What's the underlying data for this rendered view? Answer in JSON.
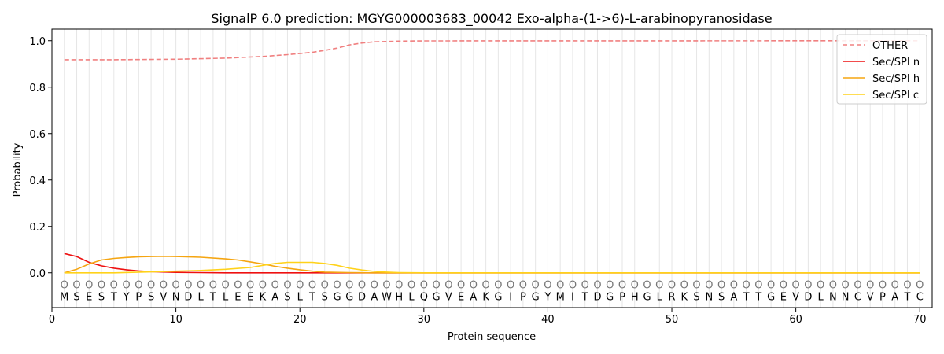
{
  "chart_data": {
    "type": "line",
    "title": "SignalP 6.0 prediction: MGYG000003683_00042 Exo-alpha-(1->6)-L-arabinopyranosidase",
    "xlabel": "Protein sequence",
    "ylabel": "Probability",
    "xlim": [
      0,
      71
    ],
    "ylim": [
      -0.15,
      1.05
    ],
    "x_ticks": [
      "0",
      "10",
      "20",
      "30",
      "40",
      "50",
      "60",
      "70"
    ],
    "y_ticks": [
      "0.0",
      "0.2",
      "0.4",
      "0.6",
      "0.8",
      "1.0"
    ],
    "legend_position": "top-right",
    "sequence": [
      "M",
      "S",
      "E",
      "S",
      "T",
      "Y",
      "P",
      "S",
      "V",
      "N",
      "D",
      "L",
      "T",
      "L",
      "E",
      "E",
      "K",
      "A",
      "S",
      "L",
      "T",
      "S",
      "G",
      "G",
      "D",
      "A",
      "W",
      "H",
      "L",
      "Q",
      "G",
      "V",
      "E",
      "A",
      "K",
      "G",
      "I",
      "P",
      "G",
      "Y",
      "M",
      "I",
      "T",
      "D",
      "G",
      "P",
      "H",
      "G",
      "L",
      "R",
      "K",
      "S",
      "N",
      "S",
      "A",
      "T",
      "T",
      "G",
      "E",
      "V",
      "D",
      "L",
      "N",
      "N",
      "C",
      "V",
      "P",
      "A",
      "T",
      "C"
    ],
    "predicted_label": "O",
    "series": [
      {
        "name": "OTHER",
        "color": "#f08080",
        "dash": "dashed",
        "points": [
          [
            1,
            0.918
          ],
          [
            5,
            0.918
          ],
          [
            10,
            0.92
          ],
          [
            14,
            0.925
          ],
          [
            17,
            0.932
          ],
          [
            19,
            0.94
          ],
          [
            21,
            0.95
          ],
          [
            22,
            0.958
          ],
          [
            23,
            0.968
          ],
          [
            24,
            0.982
          ],
          [
            25,
            0.99
          ],
          [
            26,
            0.995
          ],
          [
            28,
            0.998
          ],
          [
            30,
            0.999
          ],
          [
            70,
            1.0
          ]
        ]
      },
      {
        "name": "Sec/SPI n",
        "color": "#ee1111",
        "dash": "solid",
        "points": [
          [
            1,
            0.083
          ],
          [
            2,
            0.07
          ],
          [
            3,
            0.045
          ],
          [
            4,
            0.03
          ],
          [
            5,
            0.02
          ],
          [
            6,
            0.013
          ],
          [
            7,
            0.008
          ],
          [
            8,
            0.005
          ],
          [
            10,
            0.002
          ],
          [
            14,
            0.0
          ],
          [
            70,
            0.0
          ]
        ]
      },
      {
        "name": "Sec/SPI h",
        "color": "#f5a511",
        "dash": "solid",
        "points": [
          [
            1,
            0.0
          ],
          [
            2,
            0.015
          ],
          [
            3,
            0.038
          ],
          [
            4,
            0.055
          ],
          [
            5,
            0.062
          ],
          [
            6,
            0.066
          ],
          [
            7,
            0.069
          ],
          [
            8,
            0.07
          ],
          [
            9,
            0.071
          ],
          [
            10,
            0.07
          ],
          [
            12,
            0.067
          ],
          [
            14,
            0.06
          ],
          [
            15,
            0.055
          ],
          [
            16,
            0.047
          ],
          [
            17,
            0.038
          ],
          [
            18,
            0.028
          ],
          [
            19,
            0.02
          ],
          [
            20,
            0.013
          ],
          [
            21,
            0.007
          ],
          [
            22,
            0.003
          ],
          [
            24,
            0.001
          ],
          [
            26,
            0.0
          ],
          [
            70,
            0.0
          ]
        ]
      },
      {
        "name": "Sec/SPI c",
        "color": "#ffd21a",
        "dash": "solid",
        "points": [
          [
            1,
            0.0
          ],
          [
            5,
            0.0
          ],
          [
            8,
            0.004
          ],
          [
            10,
            0.007
          ],
          [
            12,
            0.01
          ],
          [
            14,
            0.015
          ],
          [
            16,
            0.023
          ],
          [
            17,
            0.032
          ],
          [
            18,
            0.04
          ],
          [
            19,
            0.045
          ],
          [
            21,
            0.045
          ],
          [
            22,
            0.04
          ],
          [
            23,
            0.032
          ],
          [
            24,
            0.02
          ],
          [
            25,
            0.012
          ],
          [
            26,
            0.006
          ],
          [
            27,
            0.003
          ],
          [
            28,
            0.001
          ],
          [
            30,
            0.0
          ],
          [
            70,
            0.0
          ]
        ]
      }
    ]
  }
}
